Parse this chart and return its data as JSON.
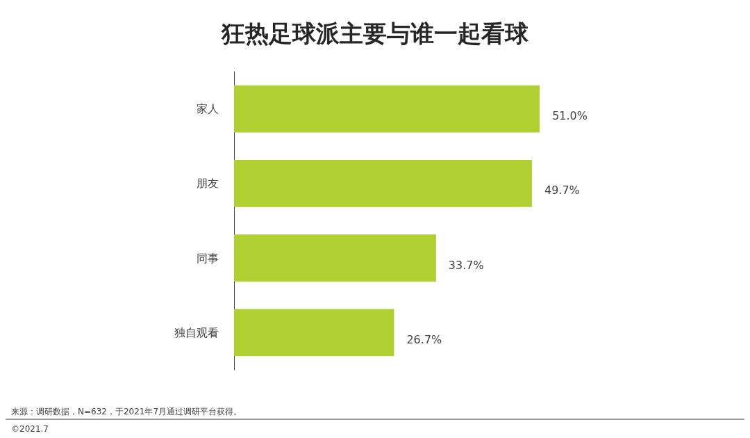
{
  "chart_data": {
    "type": "bar",
    "orientation": "horizontal",
    "title": "狂热足球派主要与谁一起看球",
    "categories": [
      "家人",
      "朋友",
      "同事",
      "独自观看"
    ],
    "values": [
      51.0,
      49.7,
      33.7,
      26.7
    ],
    "value_labels": [
      "51.0%",
      "49.7%",
      "33.7%",
      "26.7%"
    ],
    "color": "#b0d032",
    "annotations": [
      "来源：调研数据，N=632，于2021年7月通过调研平台获得。",
      "©2021.7"
    ]
  }
}
